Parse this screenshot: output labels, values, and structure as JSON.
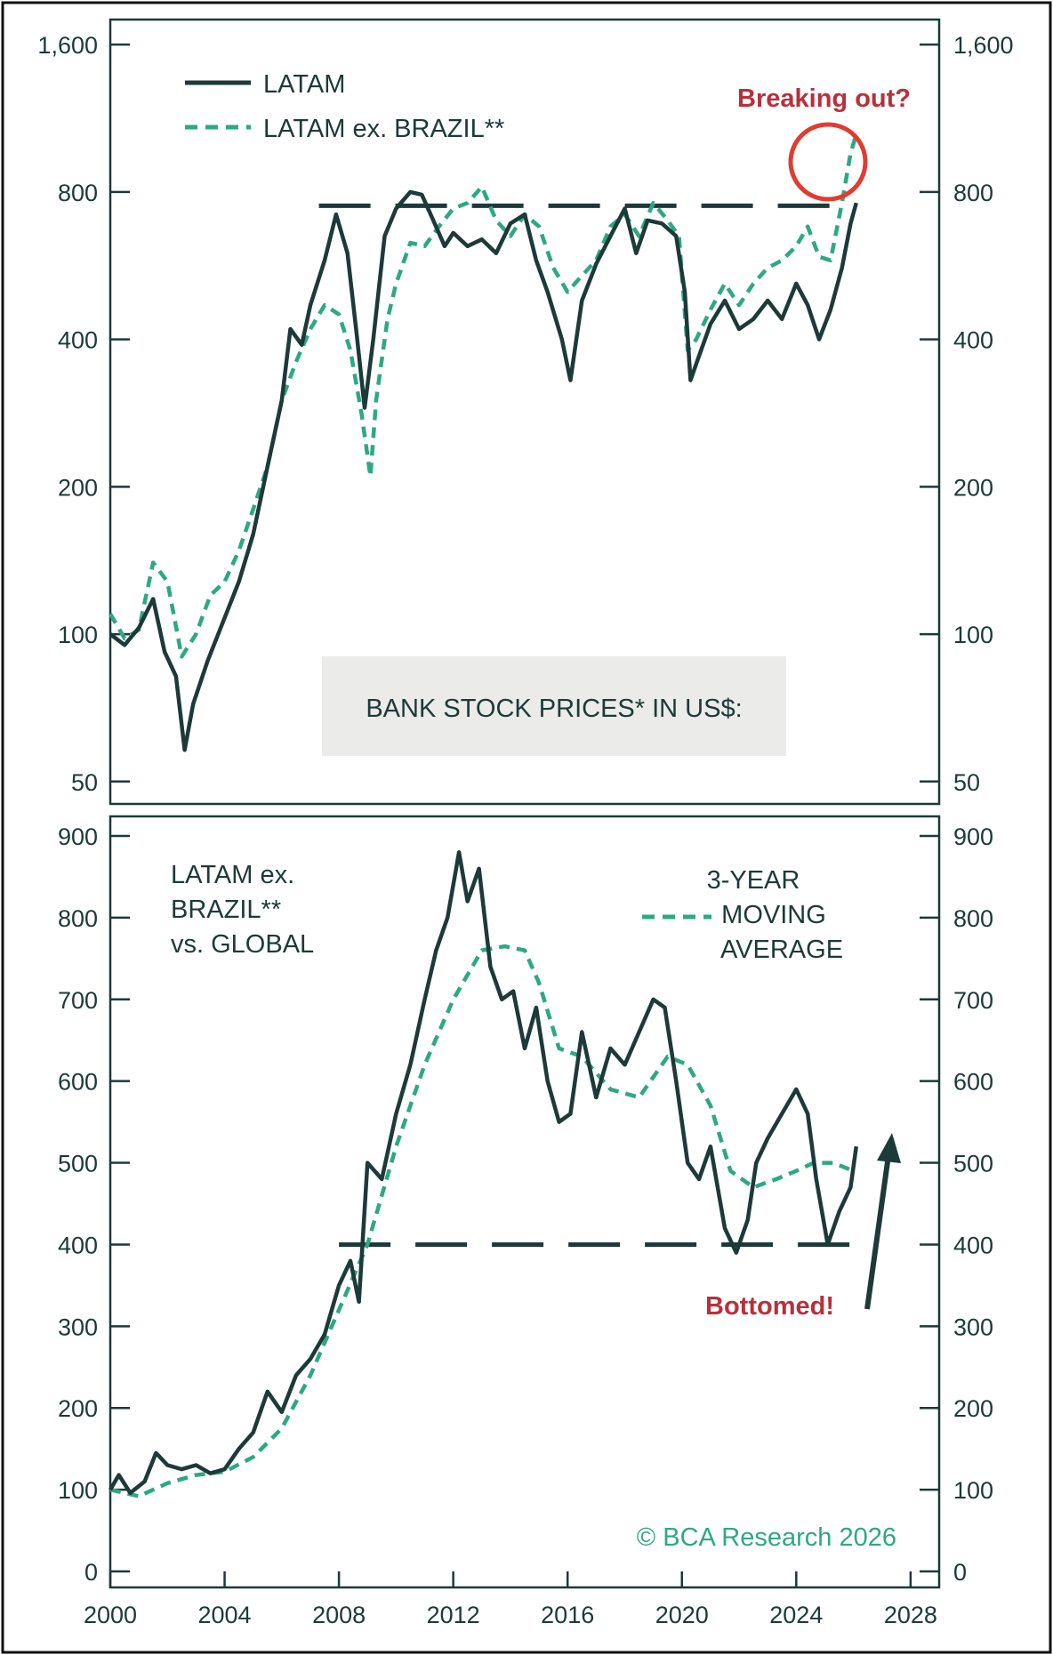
{
  "colors": {
    "dark": "#1c3a38",
    "green": "#2ea884",
    "red": "#b8303a",
    "panel_bg": "#ebebe9",
    "brand": "#2ea884"
  },
  "copyright": "© BCA Research 2026",
  "chart_data": [
    {
      "type": "line",
      "title": "BANK STOCK PRICES* IN US$:",
      "yscale": "log",
      "ylim": [
        45,
        1800
      ],
      "xlim": [
        2000,
        2029
      ],
      "yticks": [
        50,
        100,
        200,
        400,
        800,
        1600
      ],
      "ytick_labels": [
        "50",
        "100",
        "200",
        "400",
        "800",
        "1,600"
      ],
      "legend_position": "top-left",
      "series": [
        {
          "name": "LATAM",
          "style": "solid",
          "color": "#1c3a38",
          "points": [
            [
              2000,
              100
            ],
            [
              2000.5,
              95
            ],
            [
              2001,
              103
            ],
            [
              2001.5,
              118
            ],
            [
              2001.9,
              92
            ],
            [
              2002.3,
              82
            ],
            [
              2002.6,
              58
            ],
            [
              2002.9,
              72
            ],
            [
              2003.4,
              88
            ],
            [
              2004,
              108
            ],
            [
              2004.5,
              128
            ],
            [
              2005,
              160
            ],
            [
              2005.5,
              220
            ],
            [
              2006,
              300
            ],
            [
              2006.3,
              420
            ],
            [
              2006.7,
              390
            ],
            [
              2007,
              470
            ],
            [
              2007.5,
              580
            ],
            [
              2007.9,
              720
            ],
            [
              2008.3,
              600
            ],
            [
              2008.6,
              420
            ],
            [
              2008.9,
              290
            ],
            [
              2009.2,
              400
            ],
            [
              2009.6,
              650
            ],
            [
              2010,
              740
            ],
            [
              2010.5,
              800
            ],
            [
              2010.9,
              790
            ],
            [
              2011.3,
              700
            ],
            [
              2011.7,
              620
            ],
            [
              2012,
              660
            ],
            [
              2012.5,
              620
            ],
            [
              2013,
              640
            ],
            [
              2013.5,
              600
            ],
            [
              2014,
              690
            ],
            [
              2014.5,
              720
            ],
            [
              2014.9,
              580
            ],
            [
              2015.3,
              500
            ],
            [
              2015.8,
              400
            ],
            [
              2016.1,
              330
            ],
            [
              2016.5,
              480
            ],
            [
              2017,
              570
            ],
            [
              2017.5,
              650
            ],
            [
              2018,
              740
            ],
            [
              2018.4,
              600
            ],
            [
              2018.8,
              700
            ],
            [
              2019.3,
              690
            ],
            [
              2019.8,
              650
            ],
            [
              2020.1,
              500
            ],
            [
              2020.3,
              330
            ],
            [
              2020.6,
              370
            ],
            [
              2021,
              430
            ],
            [
              2021.5,
              480
            ],
            [
              2022,
              420
            ],
            [
              2022.5,
              440
            ],
            [
              2023,
              480
            ],
            [
              2023.5,
              440
            ],
            [
              2024,
              520
            ],
            [
              2024.4,
              470
            ],
            [
              2024.8,
              400
            ],
            [
              2025.2,
              460
            ],
            [
              2025.6,
              560
            ],
            [
              2025.9,
              690
            ],
            [
              2026.1,
              760
            ]
          ]
        },
        {
          "name": "LATAM ex. BRAZIL**",
          "style": "dashed",
          "color": "#2ea884",
          "points": [
            [
              2000,
              110
            ],
            [
              2000.5,
              98
            ],
            [
              2001,
              102
            ],
            [
              2001.5,
              140
            ],
            [
              2002,
              128
            ],
            [
              2002.5,
              90
            ],
            [
              2003,
              100
            ],
            [
              2003.5,
              120
            ],
            [
              2004,
              128
            ],
            [
              2004.5,
              148
            ],
            [
              2005,
              180
            ],
            [
              2005.5,
              220
            ],
            [
              2006,
              300
            ],
            [
              2006.5,
              360
            ],
            [
              2007,
              420
            ],
            [
              2007.5,
              470
            ],
            [
              2008,
              450
            ],
            [
              2008.4,
              380
            ],
            [
              2008.8,
              280
            ],
            [
              2009.1,
              210
            ],
            [
              2009.3,
              300
            ],
            [
              2009.7,
              440
            ],
            [
              2010,
              520
            ],
            [
              2010.5,
              630
            ],
            [
              2011,
              620
            ],
            [
              2011.5,
              680
            ],
            [
              2012,
              740
            ],
            [
              2012.5,
              760
            ],
            [
              2013,
              820
            ],
            [
              2013.5,
              700
            ],
            [
              2014,
              650
            ],
            [
              2014.5,
              720
            ],
            [
              2015,
              680
            ],
            [
              2015.5,
              560
            ],
            [
              2016,
              500
            ],
            [
              2016.5,
              540
            ],
            [
              2017,
              580
            ],
            [
              2017.5,
              680
            ],
            [
              2018,
              720
            ],
            [
              2018.5,
              650
            ],
            [
              2019,
              760
            ],
            [
              2019.5,
              700
            ],
            [
              2019.9,
              650
            ],
            [
              2020.2,
              380
            ],
            [
              2020.5,
              400
            ],
            [
              2021,
              460
            ],
            [
              2021.5,
              520
            ],
            [
              2022,
              470
            ],
            [
              2022.5,
              520
            ],
            [
              2023,
              560
            ],
            [
              2023.5,
              580
            ],
            [
              2024,
              620
            ],
            [
              2024.4,
              680
            ],
            [
              2024.8,
              590
            ],
            [
              2025.2,
              580
            ],
            [
              2025.6,
              760
            ],
            [
              2025.9,
              960
            ],
            [
              2026.1,
              1050
            ]
          ]
        }
      ],
      "resistance_line": {
        "y": 750,
        "x_start": 2007.3,
        "x_end": 2026.1
      },
      "annotations": [
        {
          "text": "Breaking out?",
          "x": 2025.4,
          "y": 950
        }
      ]
    },
    {
      "type": "line",
      "ylim": [
        0,
        900
      ],
      "xlim": [
        2000,
        2029
      ],
      "yticks": [
        0,
        100,
        200,
        300,
        400,
        500,
        600,
        700,
        800,
        900
      ],
      "xticks": [
        2000,
        2004,
        2008,
        2012,
        2016,
        2020,
        2024,
        2028
      ],
      "series_label": [
        "LATAM ex.",
        "BRAZIL**",
        "vs. GLOBAL"
      ],
      "legend_label": [
        "3-YEAR",
        "MOVING",
        "AVERAGE"
      ],
      "series": [
        {
          "name": "LATAM ex. BRAZIL** vs. GLOBAL",
          "style": "solid",
          "color": "#1c3a38",
          "points": [
            [
              2000,
              100
            ],
            [
              2000.3,
              118
            ],
            [
              2000.7,
              96
            ],
            [
              2001.2,
              110
            ],
            [
              2001.6,
              145
            ],
            [
              2002,
              130
            ],
            [
              2002.5,
              125
            ],
            [
              2003,
              130
            ],
            [
              2003.5,
              120
            ],
            [
              2004,
              125
            ],
            [
              2004.5,
              150
            ],
            [
              2005,
              170
            ],
            [
              2005.5,
              220
            ],
            [
              2006,
              195
            ],
            [
              2006.5,
              240
            ],
            [
              2007,
              260
            ],
            [
              2007.5,
              290
            ],
            [
              2008,
              350
            ],
            [
              2008.4,
              380
            ],
            [
              2008.7,
              330
            ],
            [
              2009,
              500
            ],
            [
              2009.5,
              480
            ],
            [
              2010,
              560
            ],
            [
              2010.5,
              620
            ],
            [
              2011,
              700
            ],
            [
              2011.4,
              760
            ],
            [
              2011.8,
              800
            ],
            [
              2012.2,
              880
            ],
            [
              2012.5,
              820
            ],
            [
              2012.9,
              860
            ],
            [
              2013.3,
              740
            ],
            [
              2013.7,
              700
            ],
            [
              2014.1,
              710
            ],
            [
              2014.5,
              640
            ],
            [
              2014.9,
              690
            ],
            [
              2015.3,
              600
            ],
            [
              2015.7,
              550
            ],
            [
              2016.1,
              560
            ],
            [
              2016.5,
              660
            ],
            [
              2017,
              580
            ],
            [
              2017.5,
              640
            ],
            [
              2018,
              620
            ],
            [
              2018.5,
              660
            ],
            [
              2019,
              700
            ],
            [
              2019.4,
              690
            ],
            [
              2019.8,
              600
            ],
            [
              2020.2,
              500
            ],
            [
              2020.6,
              480
            ],
            [
              2021,
              520
            ],
            [
              2021.5,
              420
            ],
            [
              2021.9,
              390
            ],
            [
              2022.3,
              430
            ],
            [
              2022.6,
              500
            ],
            [
              2023,
              530
            ],
            [
              2023.5,
              560
            ],
            [
              2024,
              590
            ],
            [
              2024.4,
              560
            ],
            [
              2024.7,
              480
            ],
            [
              2025.1,
              400
            ],
            [
              2025.5,
              440
            ],
            [
              2025.9,
              470
            ],
            [
              2026.1,
              520
            ]
          ]
        },
        {
          "name": "3-YEAR MOVING AVERAGE",
          "style": "dashed",
          "color": "#2ea884",
          "points": [
            [
              2000,
              100
            ],
            [
              2001,
              92
            ],
            [
              2002,
              108
            ],
            [
              2003,
              118
            ],
            [
              2004,
              122
            ],
            [
              2005,
              140
            ],
            [
              2006,
              175
            ],
            [
              2007,
              240
            ],
            [
              2008,
              320
            ],
            [
              2009,
              400
            ],
            [
              2010,
              520
            ],
            [
              2011,
              620
            ],
            [
              2012,
              700
            ],
            [
              2013,
              760
            ],
            [
              2013.8,
              765
            ],
            [
              2014.5,
              760
            ],
            [
              2015,
              720
            ],
            [
              2015.7,
              640
            ],
            [
              2016.5,
              630
            ],
            [
              2017.5,
              590
            ],
            [
              2018.5,
              580
            ],
            [
              2019.5,
              630
            ],
            [
              2020.2,
              620
            ],
            [
              2021,
              570
            ],
            [
              2021.7,
              490
            ],
            [
              2022.5,
              470
            ],
            [
              2023.3,
              480
            ],
            [
              2024,
              490
            ],
            [
              2024.6,
              500
            ],
            [
              2025.3,
              500
            ],
            [
              2026,
              490
            ]
          ]
        }
      ],
      "support_line": {
        "y": 400,
        "x_start": 2008,
        "x_end": 2026.3
      },
      "annotations": [
        {
          "text": "Bottomed!",
          "x": 2023.2,
          "y": 340
        }
      ]
    }
  ]
}
